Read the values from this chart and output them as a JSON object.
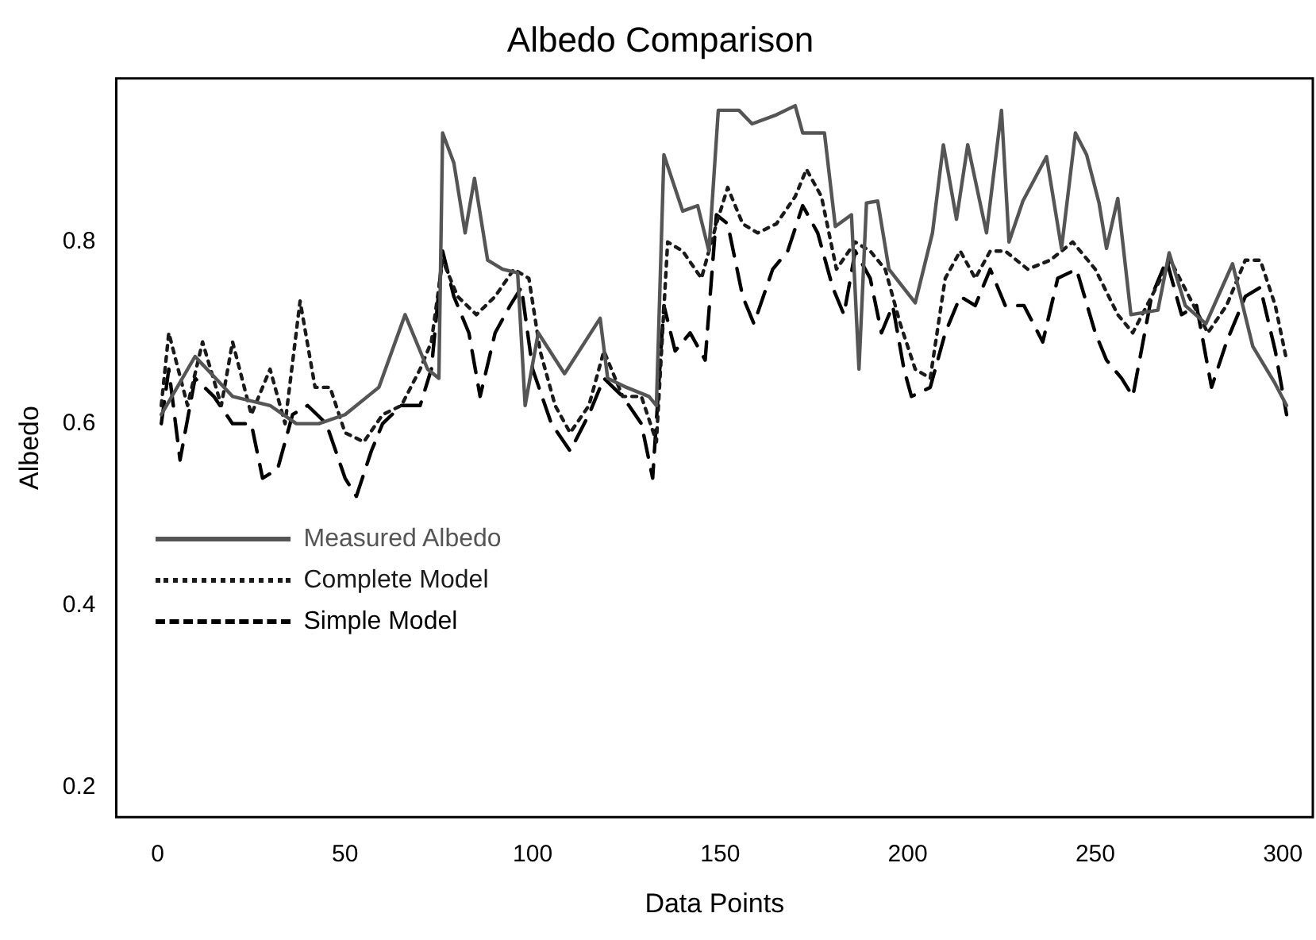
{
  "chart_data": {
    "type": "line",
    "title": "Albedo Comparison",
    "xlabel": "Data Points",
    "ylabel": "Albedo",
    "xlim": [
      -11,
      308
    ],
    "xticks": [
      0,
      50,
      100,
      150,
      200,
      250,
      300
    ],
    "ylim": [
      0.167,
      0.98
    ],
    "yticks": [
      0.2,
      0.4,
      0.6,
      0.8
    ],
    "grid": false,
    "legend": "left",
    "marker": "none",
    "series": [
      {
        "name": "Measured Albedo",
        "color": "#555555",
        "line_style": "solid",
        "x": [
          1,
          10,
          20,
          30,
          37,
          43,
          50,
          59,
          66,
          72,
          75,
          76,
          79,
          82,
          84.5,
          88,
          92,
          96,
          98,
          101.5,
          108.5,
          118,
          120,
          125,
          131,
          133,
          135,
          140,
          144,
          147,
          149.5,
          155,
          158.5,
          165,
          170,
          172,
          177.8,
          180.7,
          185,
          187,
          189,
          192,
          195,
          202,
          206.6,
          209.5,
          213,
          216,
          221,
          225,
          227,
          230.7,
          237,
          241,
          244.7,
          247.7,
          251,
          253,
          256,
          259.5,
          266.7,
          269.7,
          274,
          279.5,
          286.6,
          292,
          297.7,
          301
        ],
        "values": [
          0.61,
          0.674,
          0.63,
          0.62,
          0.6,
          0.6,
          0.61,
          0.64,
          0.72,
          0.66,
          0.65,
          0.92,
          0.887,
          0.81,
          0.87,
          0.78,
          0.77,
          0.766,
          0.62,
          0.7,
          0.655,
          0.716,
          0.65,
          0.64,
          0.63,
          0.62,
          0.896,
          0.834,
          0.84,
          0.79,
          0.945,
          0.945,
          0.93,
          0.94,
          0.95,
          0.92,
          0.92,
          0.817,
          0.83,
          0.66,
          0.843,
          0.845,
          0.77,
          0.733,
          0.81,
          0.907,
          0.825,
          0.907,
          0.81,
          0.945,
          0.8,
          0.845,
          0.894,
          0.793,
          0.92,
          0.896,
          0.843,
          0.793,
          0.848,
          0.72,
          0.725,
          0.788,
          0.73,
          0.71,
          0.776,
          0.685,
          0.646,
          0.62
        ]
      },
      {
        "name": "Complete Model",
        "color": "#1a1a1a",
        "line_style": "dotted",
        "x": [
          1,
          3,
          8,
          12,
          17,
          20,
          25,
          30,
          34,
          38,
          42,
          46,
          50,
          55,
          60,
          65,
          70,
          73,
          76,
          80,
          85,
          90,
          95,
          99,
          102,
          106,
          110,
          115,
          119,
          124,
          129,
          133,
          136,
          140,
          145,
          149,
          152,
          156,
          160,
          165,
          170,
          173,
          177,
          181,
          186,
          190,
          194,
          198,
          202,
          206,
          210,
          214,
          218,
          222,
          226,
          232,
          238,
          244,
          250,
          256,
          260,
          265,
          270,
          275,
          280,
          285,
          290,
          294,
          298,
          301
        ],
        "values": [
          0.62,
          0.7,
          0.62,
          0.69,
          0.62,
          0.69,
          0.61,
          0.66,
          0.6,
          0.735,
          0.64,
          0.64,
          0.59,
          0.58,
          0.61,
          0.62,
          0.66,
          0.69,
          0.78,
          0.74,
          0.72,
          0.74,
          0.77,
          0.76,
          0.68,
          0.62,
          0.59,
          0.62,
          0.68,
          0.63,
          0.63,
          0.58,
          0.8,
          0.79,
          0.76,
          0.82,
          0.86,
          0.82,
          0.81,
          0.82,
          0.85,
          0.88,
          0.85,
          0.77,
          0.8,
          0.79,
          0.77,
          0.71,
          0.66,
          0.65,
          0.76,
          0.79,
          0.76,
          0.79,
          0.79,
          0.77,
          0.78,
          0.8,
          0.77,
          0.72,
          0.7,
          0.74,
          0.78,
          0.74,
          0.7,
          0.73,
          0.78,
          0.78,
          0.73,
          0.67
        ]
      },
      {
        "name": "Simple Model",
        "color": "#000000",
        "line_style": "dashed",
        "x": [
          1,
          3,
          6,
          10,
          15,
          20,
          25,
          28,
          32,
          36,
          40,
          45,
          50,
          53,
          57,
          60,
          65,
          70,
          73,
          76,
          79,
          83,
          86,
          90,
          94,
          97,
          100,
          105,
          110,
          115,
          119,
          124,
          129,
          132,
          135,
          138,
          142,
          146,
          149,
          152,
          156,
          159,
          164,
          168,
          172,
          176,
          180,
          183,
          186,
          190,
          193,
          196,
          199,
          201,
          206,
          210,
          214,
          218,
          222,
          226,
          231,
          236,
          240,
          245,
          250,
          253,
          257,
          260,
          265,
          269,
          273,
          277,
          281,
          285,
          290,
          294,
          298,
          301
        ],
        "values": [
          0.6,
          0.66,
          0.56,
          0.65,
          0.63,
          0.6,
          0.6,
          0.54,
          0.55,
          0.61,
          0.62,
          0.6,
          0.54,
          0.52,
          0.57,
          0.6,
          0.62,
          0.62,
          0.66,
          0.79,
          0.74,
          0.7,
          0.63,
          0.7,
          0.73,
          0.75,
          0.66,
          0.6,
          0.57,
          0.61,
          0.65,
          0.63,
          0.6,
          0.54,
          0.73,
          0.68,
          0.7,
          0.67,
          0.83,
          0.82,
          0.74,
          0.71,
          0.77,
          0.79,
          0.84,
          0.81,
          0.75,
          0.72,
          0.79,
          0.76,
          0.7,
          0.73,
          0.66,
          0.63,
          0.64,
          0.7,
          0.74,
          0.73,
          0.77,
          0.73,
          0.73,
          0.69,
          0.76,
          0.77,
          0.7,
          0.67,
          0.65,
          0.63,
          0.74,
          0.78,
          0.72,
          0.73,
          0.64,
          0.69,
          0.74,
          0.75,
          0.68,
          0.61
        ]
      }
    ]
  }
}
